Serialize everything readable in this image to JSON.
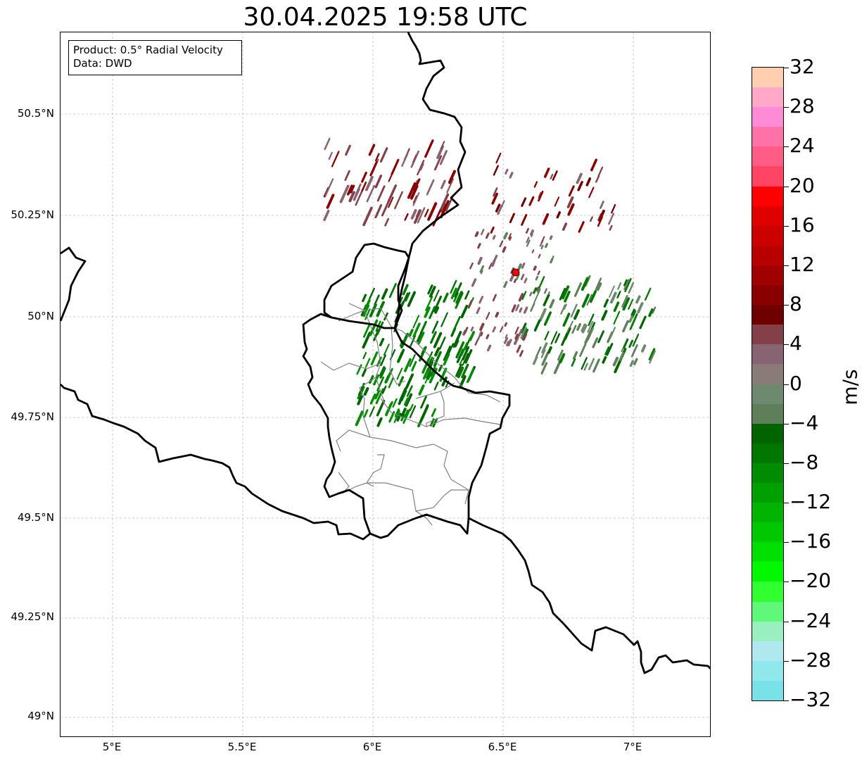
{
  "title": "30.04.2025 19:58 UTC",
  "info": {
    "product": "Product: 0.5° Radial Velocity",
    "source": "Data: DWD"
  },
  "axes": {
    "lat_labels": [
      "50.5°N",
      "50.25°N",
      "50°N",
      "49.75°N",
      "49.5°N",
      "49.25°N",
      "49°N"
    ],
    "lon_labels": [
      "5°E",
      "5.5°E",
      "6°E",
      "6.5°E",
      "7°E"
    ]
  },
  "colorbar": {
    "unit": "m/s",
    "tick_labels": [
      "32",
      "28",
      "24",
      "20",
      "16",
      "12",
      "8",
      "4",
      "0",
      "−4",
      "−8",
      "−12",
      "−16",
      "−20",
      "−24",
      "−28",
      "−32"
    ],
    "colors_top_to_bottom": [
      "#ffcfb0",
      "#ffa8c7",
      "#ff8ad6",
      "#ff72a8",
      "#ff5c86",
      "#ff4466",
      "#ff0000",
      "#e00000",
      "#cc0000",
      "#b80000",
      "#a00000",
      "#880000",
      "#6e0000",
      "#844048",
      "#876472",
      "#8a7a78",
      "#6e8a6e",
      "#5f7f5a",
      "#006400",
      "#007800",
      "#008c00",
      "#00a000",
      "#00b400",
      "#00c800",
      "#00e000",
      "#00f800",
      "#30ff30",
      "#60f878",
      "#98f0c0",
      "#b0e8f0",
      "#90e8ec",
      "#78e2e8"
    ]
  },
  "map": {
    "radar_site_color": "#ff0000"
  }
}
